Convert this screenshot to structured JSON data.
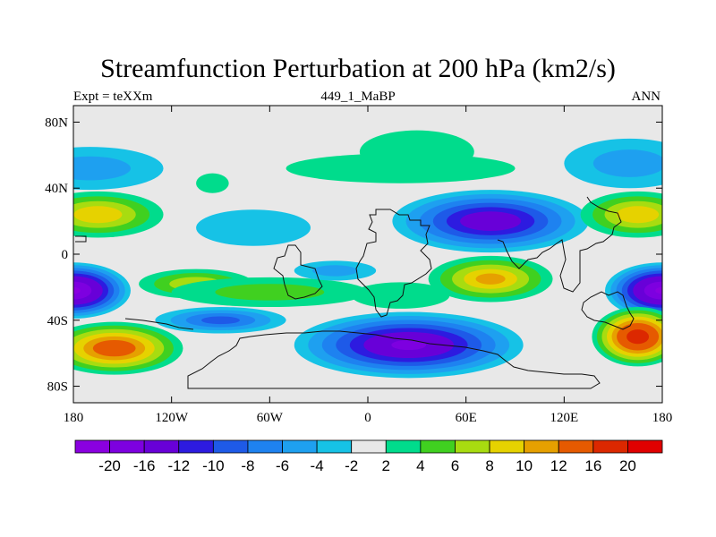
{
  "chart_data": {
    "type": "heatmap",
    "title": "Streamfunction Perturbation at 200 hPa (km2/s)",
    "left_label": "Expt = teXXm",
    "center_label": "449_1_MaBP",
    "right_label": "ANN",
    "x_range": [
      -180,
      180
    ],
    "y_range": [
      -90,
      90
    ],
    "x_ticks": [
      {
        "value": -180,
        "label": "180"
      },
      {
        "value": -120,
        "label": "120W"
      },
      {
        "value": -60,
        "label": "60W"
      },
      {
        "value": 0,
        "label": "0"
      },
      {
        "value": 60,
        "label": "60E"
      },
      {
        "value": 120,
        "label": "120E"
      },
      {
        "value": 180,
        "label": "180"
      }
    ],
    "y_ticks": [
      {
        "value": 80,
        "label": "80N"
      },
      {
        "value": 40,
        "label": "40N"
      },
      {
        "value": 0,
        "label": "0"
      },
      {
        "value": -40,
        "label": "40S"
      },
      {
        "value": -80,
        "label": "80S"
      }
    ],
    "colorbar": {
      "levels": [
        "-20",
        "-16",
        "-12",
        "-10",
        "-8",
        "-6",
        "-4",
        "-2",
        "2",
        "4",
        "6",
        "8",
        "10",
        "12",
        "16",
        "20"
      ],
      "colors": [
        "#8a00e0",
        "#7d00e0",
        "#6800d8",
        "#2d1be0",
        "#1e5ae8",
        "#1e82f0",
        "#1ea0f0",
        "#16c2e6",
        "#e8e8e8",
        "#00dc8c",
        "#40d020",
        "#a8dc10",
        "#e6d200",
        "#e6a000",
        "#e65a00",
        "#dc2800",
        "#e00000"
      ]
    },
    "features": [
      {
        "name": "cyan-north-pacific",
        "lon": -170,
        "lat": 52,
        "rx": 45,
        "ry": 13,
        "value": -4
      },
      {
        "name": "green-north-atlantic",
        "lon": -95,
        "lat": 43,
        "rx": 10,
        "ry": 6,
        "value": 3
      },
      {
        "name": "cyan-atlantic-subtropic",
        "lon": -70,
        "lat": 16,
        "rx": 35,
        "ry": 11,
        "value": -3
      },
      {
        "name": "green-arctic-europe",
        "lon": 30,
        "lat": 62,
        "rx": 35,
        "ry": 13,
        "value": 3
      },
      {
        "name": "green-north-asia",
        "lon": 20,
        "lat": 52,
        "rx": 70,
        "ry": 9,
        "value": 3
      },
      {
        "name": "blue-tibet-low",
        "lon": 75,
        "lat": 20,
        "rx": 60,
        "ry": 19,
        "value": -14
      },
      {
        "name": "cyan-north-pacific-east",
        "lon": 160,
        "lat": 55,
        "rx": 40,
        "ry": 15,
        "value": -4
      },
      {
        "name": "yellow-north-pacific-west",
        "lon": -165,
        "lat": 24,
        "rx": 40,
        "ry": 14,
        "value": 9
      },
      {
        "name": "yellow-north-pacific-east",
        "lon": 165,
        "lat": 24,
        "rx": 35,
        "ry": 14,
        "value": 9
      },
      {
        "name": "purple-south-pacific-west",
        "lon": -180,
        "lat": -22,
        "rx": 35,
        "ry": 17,
        "value": -20
      },
      {
        "name": "purple-south-pacific-east",
        "lon": 180,
        "lat": -22,
        "rx": 35,
        "ry": 17,
        "value": -20
      },
      {
        "name": "yellow-south-atlantic",
        "lon": -105,
        "lat": -18,
        "rx": 35,
        "ry": 9,
        "value": 7
      },
      {
        "name": "green-south-atlantic-band",
        "lon": -60,
        "lat": -23,
        "rx": 60,
        "ry": 9,
        "value": 4
      },
      {
        "name": "cyan-equatorial-atlantic",
        "lon": -20,
        "lat": -10,
        "rx": 25,
        "ry": 6,
        "value": -4
      },
      {
        "name": "yellow-indian-ocean",
        "lon": 75,
        "lat": -15,
        "rx": 38,
        "ry": 14,
        "value": 10
      },
      {
        "name": "green-south-indian",
        "lon": 20,
        "lat": -25,
        "rx": 30,
        "ry": 8,
        "value": 3
      },
      {
        "name": "blue-south-america-trough",
        "lon": -90,
        "lat": -40,
        "rx": 40,
        "ry": 8,
        "value": -8
      },
      {
        "name": "orange-south-pacific-west",
        "lon": -155,
        "lat": -57,
        "rx": 42,
        "ry": 16,
        "value": 14
      },
      {
        "name": "purple-southern-ocean",
        "lon": 25,
        "lat": -55,
        "rx": 70,
        "ry": 20,
        "value": -16
      },
      {
        "name": "red-south-pacific-east",
        "lon": 165,
        "lat": -50,
        "rx": 28,
        "ry": 18,
        "value": 18
      }
    ]
  }
}
